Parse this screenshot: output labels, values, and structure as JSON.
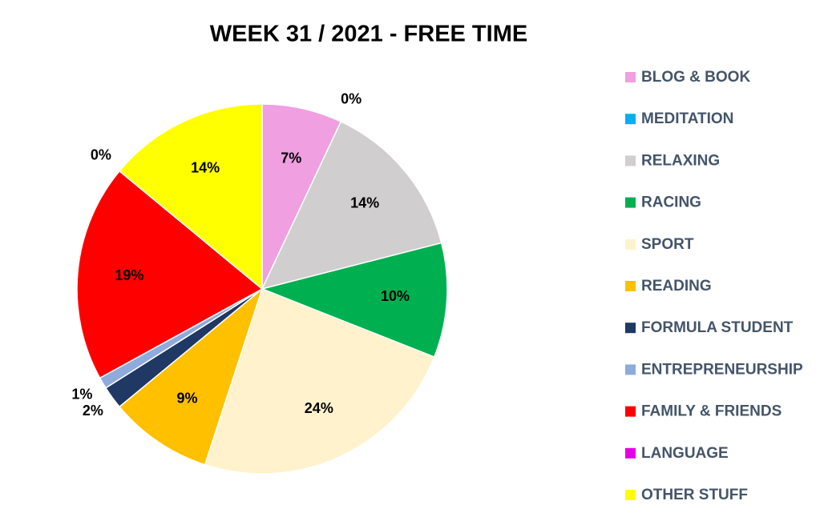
{
  "chart_data": {
    "type": "pie",
    "title": "WEEK 31 / 2021 - FREE TIME",
    "categories": [
      "BLOG & BOOK",
      "MEDITATION",
      "RELAXING",
      "RACING",
      "SPORT",
      "READING",
      "FORMULA STUDENT",
      "ENTREPRENEURSHIP",
      "FAMILY & FRIENDS",
      "LANGUAGE",
      "OTHER STUFF"
    ],
    "values": [
      7,
      0,
      14,
      10,
      24,
      9,
      2,
      1,
      19,
      0,
      14
    ],
    "value_labels": [
      "7%",
      "0%",
      "14%",
      "10%",
      "24%",
      "9%",
      "2%",
      "1%",
      "19%",
      "0%",
      "14%"
    ],
    "colors": [
      "#f09fe0",
      "#00b0f0",
      "#d0cece",
      "#00b050",
      "#fff2cc",
      "#ffc000",
      "#1f3864",
      "#8faadc",
      "#ff0000",
      "#e600e6",
      "#ffff00"
    ],
    "legend": "right"
  }
}
